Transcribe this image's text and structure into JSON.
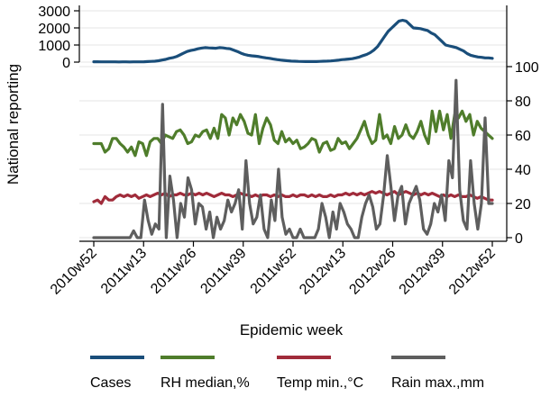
{
  "chart_data": {
    "type": "line",
    "ylabel_left": "National reporting",
    "xlabel": "Epidemic week",
    "x_ticks": [
      "2010w52",
      "2011w13",
      "2011w26",
      "2011w39",
      "2011w52",
      "2012w13",
      "2012w26",
      "2012w39",
      "2012w52"
    ],
    "x_tick_weeks": [
      0,
      13,
      26,
      39,
      52,
      65,
      78,
      91,
      104
    ],
    "cases_axis": {
      "ticks": [
        0,
        1000,
        2000,
        3000
      ],
      "ylim": [
        0,
        3000
      ]
    },
    "right_axis": {
      "ticks": [
        0,
        20,
        40,
        60,
        80,
        100
      ],
      "ylim": [
        0,
        100
      ]
    },
    "colors": {
      "cases": "#1a4e7a",
      "rh": "#4f7d2b",
      "temp": "#a02b3a",
      "rain": "#5e5e5e",
      "grid": "#e6e6e6"
    },
    "series": [
      {
        "key": "cases",
        "name": "Cases",
        "axis": "cases",
        "values": [
          20,
          20,
          18,
          15,
          15,
          15,
          15,
          12,
          15,
          15,
          12,
          15,
          15,
          15,
          20,
          30,
          40,
          50,
          80,
          120,
          160,
          220,
          260,
          320,
          420,
          520,
          620,
          680,
          720,
          780,
          820,
          850,
          830,
          820,
          810,
          850,
          830,
          800,
          780,
          700,
          620,
          520,
          450,
          400,
          370,
          350,
          320,
          280,
          250,
          220,
          180,
          150,
          120,
          100,
          80,
          60,
          50,
          40,
          35,
          30,
          30,
          30,
          30,
          40,
          50,
          60,
          70,
          90,
          110,
          140,
          160,
          180,
          200,
          250,
          300,
          380,
          450,
          550,
          700,
          900,
          1200,
          1500,
          1800,
          2000,
          2200,
          2400,
          2450,
          2400,
          2200,
          2000,
          1980,
          1960,
          1900,
          1850,
          1700,
          1600,
          1400,
          1200,
          1000,
          950,
          900,
          850,
          750,
          650,
          500,
          400,
          350,
          300,
          280,
          250,
          250,
          220
        ]
      },
      {
        "key": "rh",
        "name": "RH median,%",
        "axis": "right",
        "values": [
          55,
          55,
          55,
          50,
          52,
          58,
          58,
          55,
          53,
          50,
          53,
          48,
          56,
          55,
          48,
          56,
          58,
          58,
          55,
          60,
          59,
          58,
          62,
          63,
          60,
          55,
          56,
          60,
          59,
          62,
          63,
          58,
          64,
          58,
          72,
          70,
          60,
          70,
          66,
          72,
          68,
          61,
          60,
          72,
          55,
          64,
          70,
          66,
          57,
          55,
          62,
          56,
          58,
          55,
          57,
          52,
          53,
          55,
          58,
          57,
          50,
          55,
          56,
          51,
          52,
          58,
          55,
          56,
          52,
          55,
          58,
          63,
          68,
          60,
          55,
          57,
          72,
          58,
          60,
          55,
          65,
          58,
          60,
          66,
          60,
          58,
          62,
          68,
          60,
          55,
          74,
          62,
          74,
          63,
          72,
          58,
          72,
          70,
          74,
          68,
          72,
          60,
          68,
          64,
          62,
          60,
          58
        ]
      },
      {
        "key": "temp",
        "name": "Temp min.,°C",
        "axis": "right",
        "values": [
          21,
          22,
          20,
          24,
          22,
          22,
          24,
          25,
          24,
          25,
          24,
          25,
          23,
          24,
          25,
          24,
          25,
          26,
          25,
          26,
          24,
          25,
          25,
          26,
          25,
          25,
          26,
          25,
          26,
          25,
          26,
          25,
          24,
          25,
          26,
          25,
          25,
          24,
          25,
          26,
          25,
          25,
          24,
          25,
          24,
          25,
          25,
          24,
          25,
          24,
          25,
          24,
          24,
          25,
          24,
          25,
          25,
          24,
          25,
          24,
          25,
          24,
          24,
          25,
          24,
          25,
          25,
          26,
          25,
          26,
          25,
          26,
          25,
          26,
          27,
          26,
          27,
          26,
          25,
          26,
          27,
          25,
          26,
          27,
          26,
          25,
          26,
          25,
          26,
          25,
          26,
          25,
          24,
          25,
          24,
          25,
          24,
          25,
          24,
          24,
          25,
          24,
          23,
          24,
          23,
          22,
          22
        ]
      },
      {
        "key": "rain",
        "name": "Rain max.,mm",
        "axis": "right",
        "values": [
          0,
          0,
          0,
          0,
          0,
          0,
          0,
          0,
          0,
          0,
          0,
          4,
          0,
          0,
          22,
          10,
          2,
          8,
          5,
          78,
          0,
          36,
          22,
          0,
          20,
          12,
          35,
          28,
          8,
          20,
          18,
          5,
          15,
          0,
          12,
          5,
          10,
          22,
          15,
          20,
          28,
          5,
          45,
          20,
          8,
          12,
          25,
          5,
          0,
          22,
          10,
          40,
          12,
          2,
          5,
          0,
          0,
          5,
          0,
          0,
          0,
          0,
          5,
          20,
          12,
          0,
          15,
          5,
          20,
          15,
          8,
          5,
          0,
          0,
          12,
          20,
          25,
          18,
          5,
          8,
          25,
          48,
          30,
          10,
          25,
          30,
          8,
          20,
          25,
          30,
          22,
          5,
          2,
          8,
          20,
          15,
          25,
          10,
          45,
          35,
          92,
          28,
          10,
          5,
          45,
          20,
          5,
          20,
          70,
          20,
          20
        ]
      }
    ],
    "legend": {
      "placement": "bottom"
    }
  }
}
